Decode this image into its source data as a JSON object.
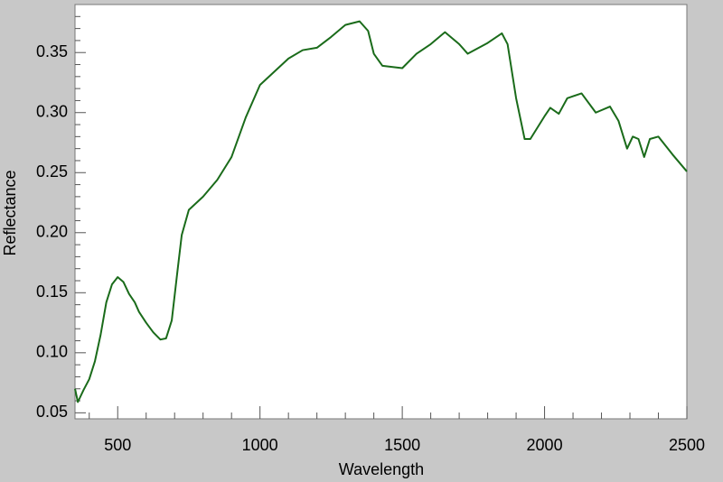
{
  "chart_data": {
    "type": "line",
    "xlabel": "Wavelength",
    "ylabel": "Reflectance",
    "xlim": [
      350,
      2500
    ],
    "ylim": [
      0.045,
      0.39
    ],
    "xticks": [
      500,
      1000,
      1500,
      2000,
      2500
    ],
    "yticks": [
      0.05,
      {
        "value": 0.1,
        "label": "0.10"
      },
      0.15,
      {
        "value": 0.2,
        "label": "0.20"
      },
      0.25,
      {
        "value": 0.3,
        "label": "0.30"
      },
      0.35
    ],
    "xminorticks": [
      400,
      600,
      700,
      800,
      900,
      1100,
      1200,
      1300,
      1400,
      1600,
      1700,
      1800,
      1900,
      2100,
      2200,
      2300,
      2400
    ],
    "yminorticks": [
      0.06,
      0.07,
      0.08,
      0.09,
      0.11,
      0.12,
      0.13,
      0.14,
      0.16,
      0.17,
      0.18,
      0.19,
      0.21,
      0.22,
      0.23,
      0.24,
      0.26,
      0.27,
      0.28,
      0.29,
      0.31,
      0.32,
      0.33,
      0.34,
      0.36,
      0.37,
      0.38
    ],
    "series": [
      {
        "color": "#1a6b1a",
        "x": [
          350,
          360,
          380,
          400,
          420,
          440,
          460,
          480,
          500,
          520,
          540,
          560,
          575,
          600,
          625,
          650,
          670,
          690,
          710,
          725,
          750,
          800,
          850,
          900,
          950,
          1000,
          1050,
          1100,
          1150,
          1200,
          1250,
          1300,
          1350,
          1380,
          1400,
          1430,
          1500,
          1550,
          1600,
          1650,
          1700,
          1730,
          1800,
          1850,
          1870,
          1900,
          1930,
          1950,
          2000,
          2020,
          2050,
          2080,
          2130,
          2180,
          2230,
          2260,
          2290,
          2310,
          2330,
          2350,
          2370,
          2400,
          2450,
          2500
        ],
        "values": [
          0.07,
          0.059,
          0.069,
          0.078,
          0.093,
          0.115,
          0.142,
          0.157,
          0.163,
          0.159,
          0.149,
          0.142,
          0.134,
          0.125,
          0.117,
          0.111,
          0.112,
          0.127,
          0.168,
          0.198,
          0.219,
          0.23,
          0.244,
          0.263,
          0.296,
          0.323,
          0.334,
          0.345,
          0.352,
          0.354,
          0.363,
          0.373,
          0.376,
          0.368,
          0.349,
          0.339,
          0.337,
          0.349,
          0.357,
          0.367,
          0.357,
          0.349,
          0.358,
          0.366,
          0.357,
          0.312,
          0.278,
          0.278,
          0.297,
          0.304,
          0.299,
          0.312,
          0.316,
          0.3,
          0.305,
          0.293,
          0.27,
          0.28,
          0.278,
          0.263,
          0.278,
          0.28,
          0.265,
          0.251
        ]
      }
    ]
  }
}
